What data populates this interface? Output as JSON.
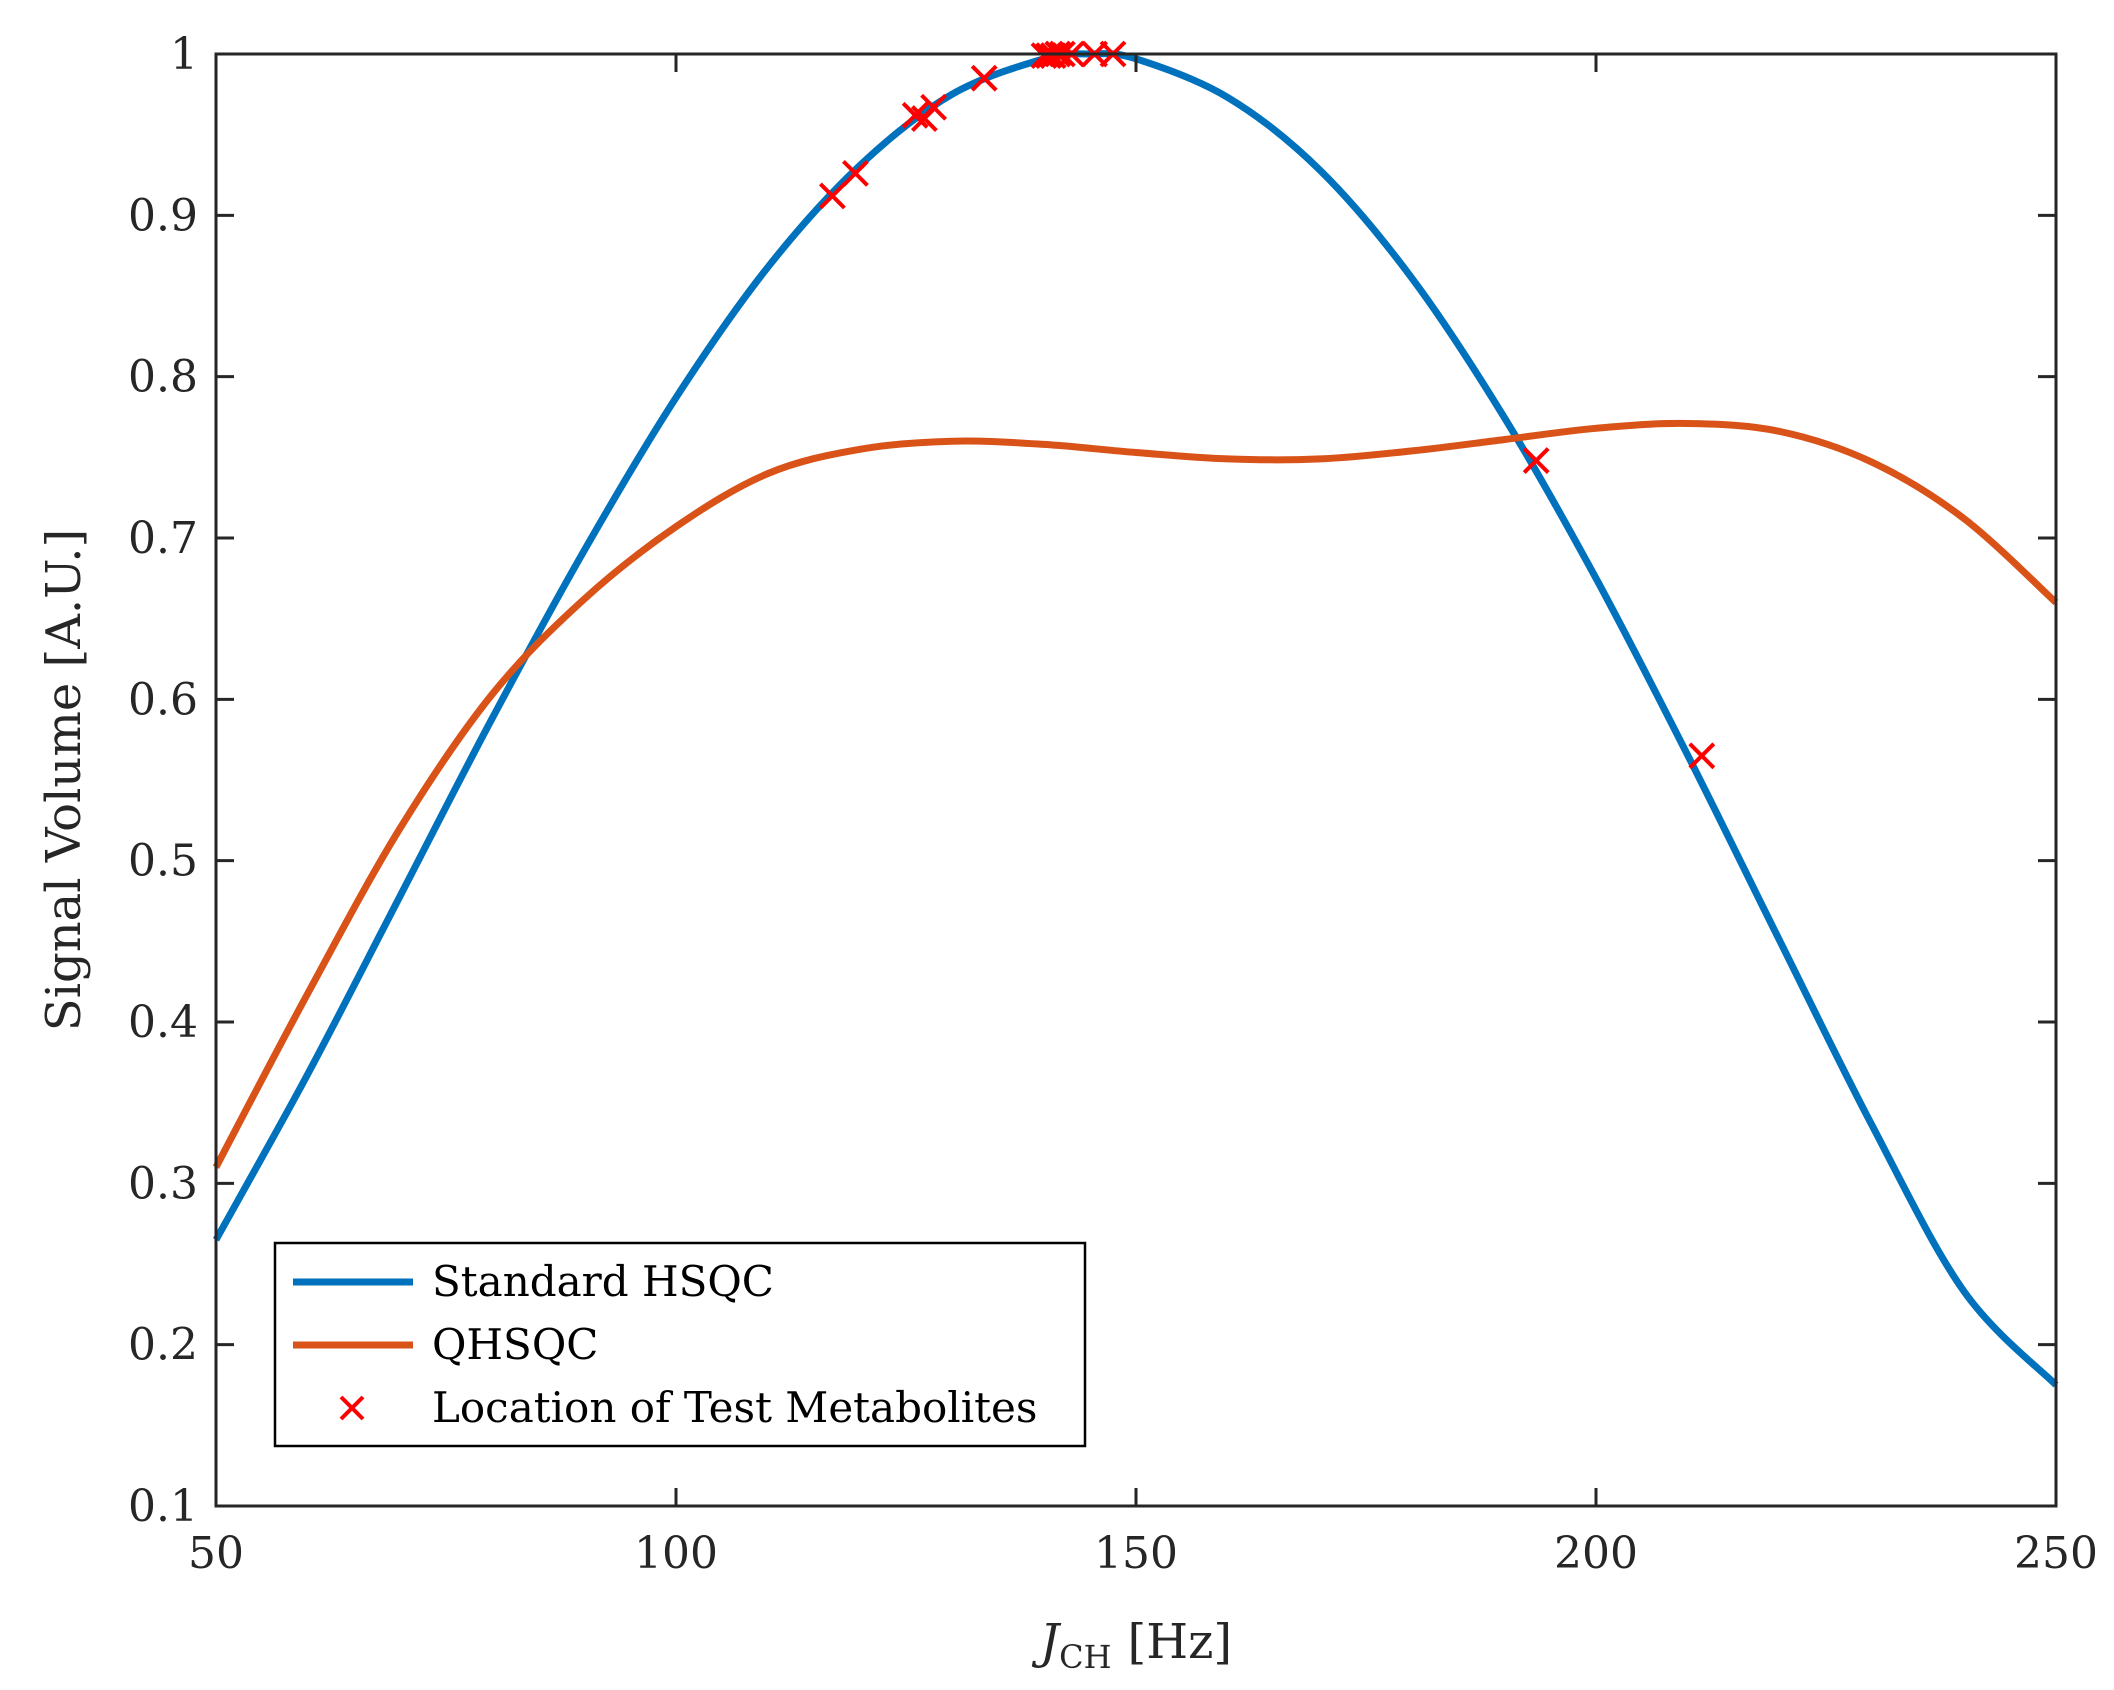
{
  "chart_data": {
    "type": "line",
    "title": "",
    "xlabel_main": "J",
    "xlabel_sub": "CH",
    "xlabel_unit": "[Hz]",
    "ylabel": "Signal Volume [A.U.]",
    "xlim": [
      50,
      250
    ],
    "ylim": [
      0.1,
      1.0
    ],
    "xticks": [
      50,
      100,
      150,
      200,
      250
    ],
    "xtick_labels": [
      "50",
      "100",
      "150",
      "200",
      "250"
    ],
    "yticks": [
      0.1,
      0.2,
      0.3,
      0.4,
      0.5,
      0.6,
      0.7,
      0.8,
      0.9,
      1.0
    ],
    "ytick_labels": [
      "0.1",
      "0.2",
      "0.3",
      "0.4",
      "0.5",
      "0.6",
      "0.7",
      "0.8",
      "0.9",
      "1"
    ],
    "grid": false,
    "legend_position": "bottom-left",
    "series": [
      {
        "name": "Standard HSQC",
        "style": "line",
        "color": "#0072BD",
        "x": [
          50,
          60,
          70,
          80,
          90,
          100,
          110,
          120,
          130,
          140,
          145,
          150,
          160,
          170,
          180,
          190,
          200,
          210,
          220,
          230,
          240,
          250
        ],
        "y": [
          0.265,
          0.368,
          0.478,
          0.588,
          0.692,
          0.787,
          0.868,
          0.931,
          0.975,
          0.997,
          1.0,
          0.997,
          0.973,
          0.928,
          0.861,
          0.775,
          0.675,
          0.565,
          0.45,
          0.336,
          0.233,
          0.175
        ]
      },
      {
        "name": "QHSQC",
        "style": "line",
        "color": "#D95319",
        "x": [
          50,
          60,
          70,
          80,
          90,
          100,
          110,
          120,
          130,
          140,
          150,
          160,
          170,
          180,
          190,
          200,
          210,
          220,
          230,
          240,
          250
        ],
        "y": [
          0.31,
          0.418,
          0.52,
          0.603,
          0.662,
          0.707,
          0.74,
          0.755,
          0.76,
          0.758,
          0.753,
          0.749,
          0.749,
          0.754,
          0.761,
          0.768,
          0.771,
          0.766,
          0.747,
          0.712,
          0.66
        ]
      },
      {
        "name": "Location of Test Metabolites",
        "style": "marker-x",
        "color": "#FF0000",
        "x": [
          117,
          119.5,
          126,
          127,
          128,
          133.5,
          140,
          140.5,
          141,
          141.5,
          142,
          143,
          145.5,
          147.5,
          193.5,
          211.5
        ],
        "y": [
          0.912,
          0.926,
          0.962,
          0.96,
          0.967,
          0.985,
          0.999,
          0.999,
          0.999,
          1.0,
          1.0,
          1.0,
          1.0,
          1.0,
          0.748,
          0.565
        ]
      }
    ]
  }
}
